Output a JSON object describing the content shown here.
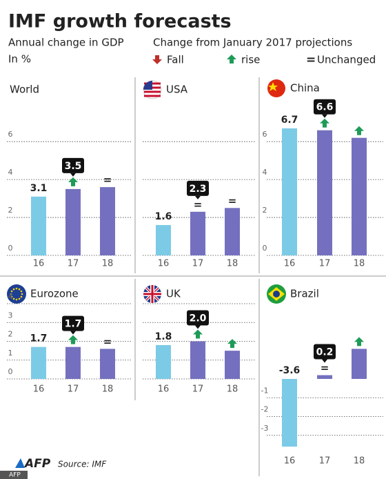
{
  "title": "IMF growth forecasts",
  "subtitle": "Annual change in GDP",
  "unit": "In %",
  "legend_title": "Change from January 2017 projections",
  "legend": {
    "fall": "Fall",
    "rise": "rise",
    "unchanged_symbol": "=",
    "unchanged": "Unchanged",
    "fall_color": "#c0302b",
    "rise_color": "#1e9b58"
  },
  "logo": "AFP",
  "source": "Source: IMF",
  "credit": "AFP",
  "chart_data": [
    {
      "type": "bar",
      "title": "World",
      "flag": null,
      "categories": [
        "16",
        "17",
        "18"
      ],
      "values": [
        3.1,
        3.5,
        3.6
      ],
      "value_labels": [
        "3.1",
        "3.5",
        null
      ],
      "changes": [
        null,
        "rise",
        "="
      ],
      "colors": [
        "#7ccbe6",
        "#7470bf",
        "#7470bf"
      ],
      "ylim": [
        0,
        7.5
      ],
      "yticks": [
        0,
        2,
        4,
        6
      ],
      "tick_labels": true,
      "grid": true
    },
    {
      "type": "bar",
      "title": "USA",
      "flag": "usa",
      "categories": [
        "16",
        "17",
        "18"
      ],
      "values": [
        1.6,
        2.3,
        2.5
      ],
      "value_labels": [
        "1.6",
        "2.3",
        null
      ],
      "changes": [
        null,
        "=",
        "="
      ],
      "colors": [
        "#7ccbe6",
        "#7470bf",
        "#7470bf"
      ],
      "ylim": [
        0,
        7.5
      ],
      "yticks": [
        0,
        2,
        4,
        6
      ],
      "tick_labels": false,
      "grid": true
    },
    {
      "type": "bar",
      "title": "China",
      "flag": "china",
      "categories": [
        "16",
        "17",
        "18"
      ],
      "values": [
        6.7,
        6.6,
        6.2
      ],
      "value_labels": [
        "6.7",
        "6.6",
        null
      ],
      "changes": [
        null,
        "rise",
        "rise"
      ],
      "colors": [
        "#7ccbe6",
        "#7470bf",
        "#7470bf"
      ],
      "ylim": [
        0,
        7.5
      ],
      "yticks": [
        0,
        2,
        4,
        6
      ],
      "tick_labels": true,
      "grid": true
    },
    {
      "type": "bar",
      "title": "Eurozone",
      "flag": "eu",
      "categories": [
        "16",
        "17",
        "18"
      ],
      "values": [
        1.7,
        1.7,
        1.6
      ],
      "value_labels": [
        "1.7",
        "1.7",
        null
      ],
      "changes": [
        null,
        "rise",
        "="
      ],
      "colors": [
        "#7ccbe6",
        "#7470bf",
        "#7470bf"
      ],
      "ylim": [
        0,
        4
      ],
      "yticks": [
        0,
        1,
        2,
        3,
        4
      ],
      "tick_labels": true,
      "grid": true
    },
    {
      "type": "bar",
      "title": "UK",
      "flag": "uk",
      "categories": [
        "16",
        "17",
        "18"
      ],
      "values": [
        1.8,
        2.0,
        1.5
      ],
      "value_labels": [
        "1.8",
        "2.0",
        null
      ],
      "changes": [
        null,
        "rise",
        "rise"
      ],
      "colors": [
        "#7ccbe6",
        "#7470bf",
        "#7470bf"
      ],
      "ylim": [
        0,
        4
      ],
      "yticks": [
        0,
        1,
        2,
        3,
        4
      ],
      "tick_labels": false,
      "grid": true
    },
    {
      "type": "bar",
      "title": "Brazil",
      "flag": "brazil",
      "categories": [
        "16",
        "17",
        "18"
      ],
      "values": [
        -3.6,
        0.2,
        1.6
      ],
      "value_labels": [
        "-3.6",
        "0.2",
        null
      ],
      "changes": [
        null,
        "=",
        "rise"
      ],
      "colors": [
        "#7ccbe6",
        "#7470bf",
        "#7470bf"
      ],
      "ylim": [
        -4,
        4
      ],
      "yticks": [
        -3,
        -2,
        -1
      ],
      "tick_labels": true,
      "grid": true
    }
  ]
}
